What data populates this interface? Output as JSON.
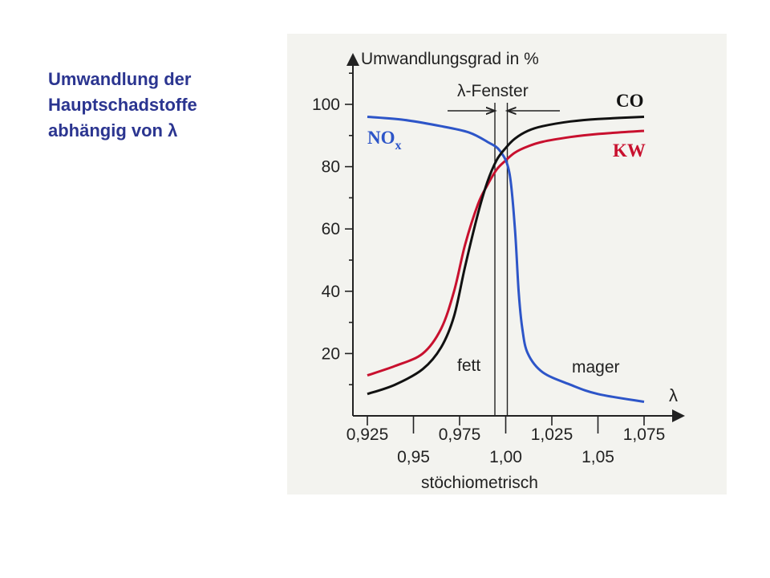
{
  "slide": {
    "title_lines": [
      "Umwandlung der",
      "Hauptschadstoffe",
      "abhängig von λ"
    ]
  },
  "colors": {
    "title": "#2b3590",
    "CO": "#111111",
    "KW": "#c8102e",
    "NOx": "#2d55c8"
  },
  "chart_data": {
    "type": "line",
    "ylabel": "Umwandlungsgrad in %",
    "xlabel": "λ",
    "x_sublabel": "stöchiometrisch",
    "xlim": [
      0.925,
      1.075
    ],
    "ylim": [
      0,
      110
    ],
    "yticks": [
      20,
      40,
      60,
      80,
      100
    ],
    "xticks_upper": [
      "0,925",
      "0,975",
      "1,025",
      "1,075"
    ],
    "xticks_lower": [
      "0,95",
      "1,00",
      "1,05"
    ],
    "xticks_upper_values": [
      0.925,
      0.975,
      1.025,
      1.075
    ],
    "xticks_lower_values": [
      0.95,
      1.0,
      1.05
    ],
    "window": {
      "label": "λ-Fenster",
      "from": 0.995,
      "to": 1.0
    },
    "annotations": {
      "rich": "fett",
      "lean": "mager"
    },
    "series": [
      {
        "name": "CO",
        "color": "#111111",
        "x": [
          0.925,
          0.94,
          0.955,
          0.965,
          0.972,
          0.978,
          0.985,
          0.99,
          0.995,
          1.0,
          1.005,
          1.012,
          1.02,
          1.035,
          1.05,
          1.075
        ],
        "y": [
          7,
          10,
          15,
          22,
          32,
          48,
          65,
          75,
          82,
          86,
          89,
          91.5,
          93,
          94.5,
          95.3,
          96
        ]
      },
      {
        "name": "KW",
        "color": "#c8102e",
        "x": [
          0.925,
          0.94,
          0.955,
          0.965,
          0.972,
          0.978,
          0.985,
          0.99,
          0.995,
          1.0,
          1.005,
          1.012,
          1.02,
          1.035,
          1.05,
          1.075
        ],
        "y": [
          13,
          16,
          20,
          28,
          40,
          55,
          68,
          74,
          79,
          82,
          84.5,
          86.5,
          88,
          89.5,
          90.5,
          91.5
        ]
      },
      {
        "name": "NOx",
        "color": "#2d55c8",
        "x": [
          0.925,
          0.945,
          0.965,
          0.98,
          0.99,
          0.997,
          1.002,
          1.005,
          1.007,
          1.009,
          1.012,
          1.02,
          1.035,
          1.05,
          1.075
        ],
        "y": [
          96,
          95,
          93,
          91,
          88,
          85,
          78,
          60,
          40,
          28,
          20,
          14,
          10,
          7,
          4.5
        ]
      }
    ]
  }
}
